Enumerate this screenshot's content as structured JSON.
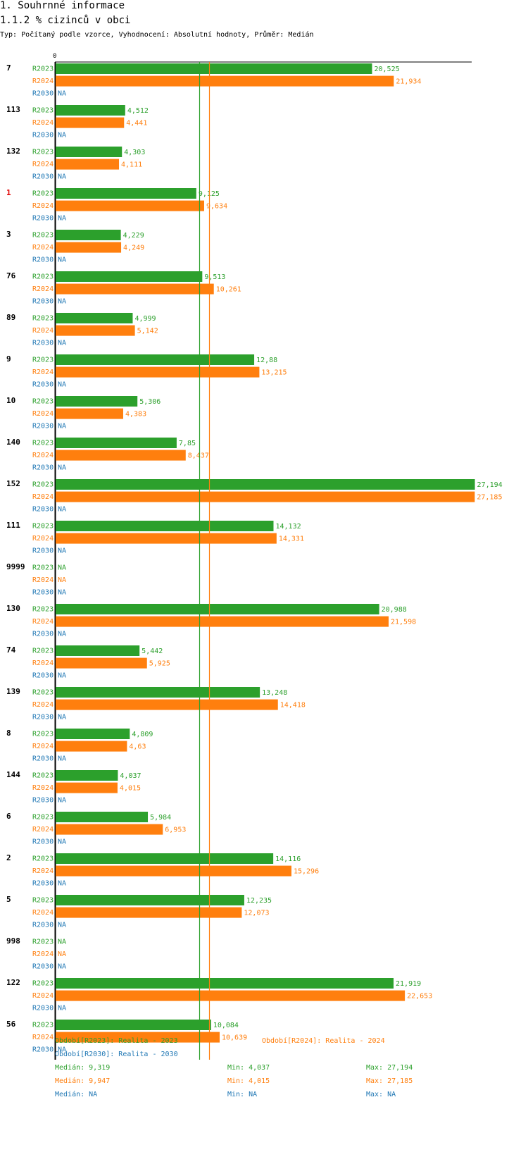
{
  "header": {
    "title": "1. Souhrnné informace",
    "subtitle": "1.1.2 % cizinců v obci",
    "info": "Typ: Počítaný podle vzorce, Vyhodnocení: Absolutní hodnoty, Průměr: Medián"
  },
  "chart_data": {
    "type": "bar",
    "orientation": "horizontal",
    "title": "1.1.2 % cizinců v obci",
    "axis_zero_label": "0",
    "xlim": [
      0,
      27.194
    ],
    "highlight_category": "1",
    "categories": [
      "7",
      "113",
      "132",
      "1",
      "3",
      "76",
      "89",
      "9",
      "10",
      "140",
      "152",
      "111",
      "9999",
      "130",
      "74",
      "139",
      "8",
      "144",
      "6",
      "2",
      "5",
      "998",
      "122",
      "56"
    ],
    "series": [
      {
        "name": "R2023",
        "color": "#2ca02c",
        "values": [
          20.525,
          4.512,
          4.303,
          9.125,
          4.229,
          9.513,
          4.999,
          12.88,
          5.306,
          7.85,
          27.194,
          14.132,
          null,
          20.988,
          5.442,
          13.248,
          4.809,
          4.037,
          5.984,
          14.116,
          12.235,
          null,
          21.919,
          10.084
        ],
        "labels": [
          "20,525",
          "4,512",
          "4,303",
          "9,125",
          "4,229",
          "9,513",
          "4,999",
          "12,88",
          "5,306",
          "7,85",
          "27,194",
          "14,132",
          "NA",
          "20,988",
          "5,442",
          "13,248",
          "4,809",
          "4,037",
          "5,984",
          "14,116",
          "12,235",
          "NA",
          "21,919",
          "10,084"
        ]
      },
      {
        "name": "R2024",
        "color": "#ff7f0e",
        "values": [
          21.934,
          4.441,
          4.111,
          9.634,
          4.249,
          10.261,
          5.142,
          13.215,
          4.383,
          8.437,
          27.185,
          14.331,
          null,
          21.598,
          5.925,
          14.418,
          4.63,
          4.015,
          6.953,
          15.296,
          12.073,
          null,
          22.653,
          10.639
        ],
        "labels": [
          "21,934",
          "4,441",
          "4,111",
          "9,634",
          "4,249",
          "10,261",
          "5,142",
          "13,215",
          "4,383",
          "8,437",
          "27,185",
          "14,331",
          "NA",
          "21,598",
          "5,925",
          "14,418",
          "4,63",
          "4,015",
          "6,953",
          "15,296",
          "12,073",
          "NA",
          "22,653",
          "10,639"
        ]
      },
      {
        "name": "R2030",
        "color": "#1f77b4",
        "values": [
          null,
          null,
          null,
          null,
          null,
          null,
          null,
          null,
          null,
          null,
          null,
          null,
          null,
          null,
          null,
          null,
          null,
          null,
          null,
          null,
          null,
          null,
          null,
          null
        ],
        "labels": [
          "NA",
          "NA",
          "NA",
          "NA",
          "NA",
          "NA",
          "NA",
          "NA",
          "NA",
          "NA",
          "NA",
          "NA",
          "NA",
          "NA",
          "NA",
          "NA",
          "NA",
          "NA",
          "NA",
          "NA",
          "NA",
          "NA",
          "NA",
          "NA"
        ]
      }
    ],
    "median_lines": [
      {
        "series": "R2023",
        "value": 9.319,
        "color": "#2ca02c"
      },
      {
        "series": "R2024",
        "value": 9.947,
        "color": "#ff7f0e"
      }
    ]
  },
  "legend": {
    "r2023": "Období[R2023]: Realita - 2023",
    "r2024": "Období[R2024]: Realita - 2024",
    "r2030": "Období[R2030]: Realita - 2030"
  },
  "stats": [
    {
      "median": "Medián: 9,319",
      "min": "Min: 4,037",
      "max": "Max: 27,194",
      "color": "#2ca02c"
    },
    {
      "median": "Medián: 9,947",
      "min": "Min: 4,015",
      "max": "Max: 27,185",
      "color": "#ff7f0e"
    },
    {
      "median": "Medián: NA",
      "min": "Min: NA",
      "max": "Max: NA",
      "color": "#1f77b4"
    }
  ]
}
